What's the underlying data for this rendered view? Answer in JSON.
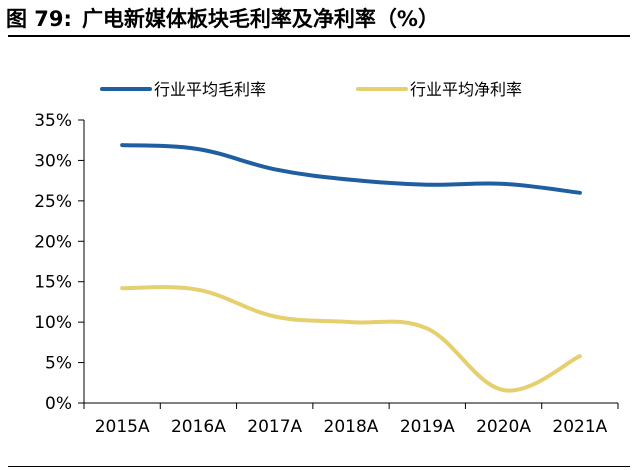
{
  "figure": {
    "label": "图 79:",
    "title": "广电新媒体板块毛利率及净利率（%）"
  },
  "chart_data": {
    "type": "line",
    "title": "广电新媒体板块毛利率及净利率（%）",
    "categories": [
      "2015A",
      "2016A",
      "2017A",
      "2018A",
      "2019A",
      "2020A",
      "2021A"
    ],
    "series": [
      {
        "name": "行业平均毛利率",
        "values": [
          31.9,
          31.4,
          28.9,
          27.6,
          27.0,
          27.1,
          26.0
        ],
        "color": "#1f5fa0"
      },
      {
        "name": "行业平均净利率",
        "values": [
          14.2,
          14.0,
          10.7,
          10.0,
          9.2,
          1.6,
          5.8
        ],
        "color": "#e6cf6e"
      }
    ],
    "ylim": [
      0,
      35
    ],
    "yticks": [
      "0%",
      "5%",
      "10%",
      "15%",
      "20%",
      "25%",
      "30%",
      "35%"
    ],
    "ytick_values": [
      0,
      5,
      10,
      15,
      20,
      25,
      30,
      35
    ],
    "xlabel": "",
    "ylabel": "",
    "grid": false,
    "legend": "top"
  }
}
